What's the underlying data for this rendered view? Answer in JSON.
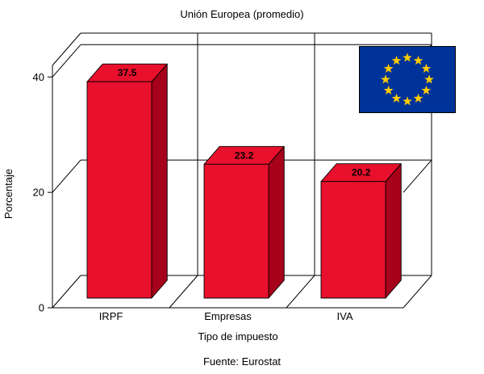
{
  "window": {
    "background": "#ffffff"
  },
  "chart_data": {
    "type": "bar",
    "style": "3d-bar",
    "title": "Unión Europea (promedio)",
    "categories": [
      "IRPF",
      "Empresas",
      "IVA"
    ],
    "values": [
      37.5,
      23.2,
      20.2
    ],
    "value_labels": [
      "37.5",
      "23.2",
      "20.2"
    ],
    "xlabel": "Tipo de impuesto",
    "ylabel": "Porcentaje",
    "yticks": [
      0,
      20,
      40
    ],
    "ylim": [
      0,
      42
    ],
    "source": "Fuente: Eurostat",
    "grid": true,
    "legend": false,
    "bar_front_color": "#e8102c",
    "bar_top_color": "#e8102c",
    "bar_side_color": "#a6001a",
    "axis_color": "#000000",
    "text_color": "#000000",
    "flag": {
      "name": "eu-flag",
      "background": "#003399",
      "star_color": "#ffcc00",
      "star_count": 12
    }
  }
}
